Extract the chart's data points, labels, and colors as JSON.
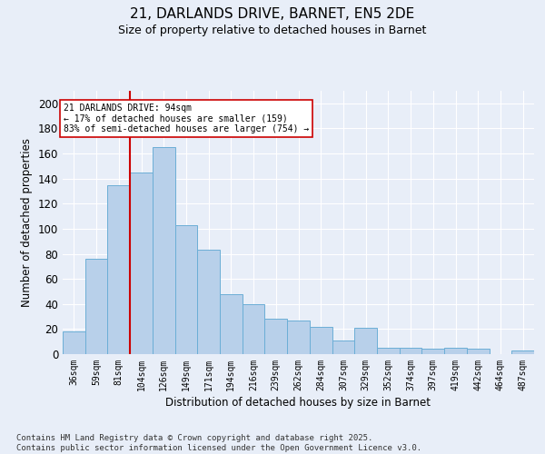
{
  "title1": "21, DARLANDS DRIVE, BARNET, EN5 2DE",
  "title2": "Size of property relative to detached houses in Barnet",
  "xlabel": "Distribution of detached houses by size in Barnet",
  "ylabel": "Number of detached properties",
  "categories": [
    "36sqm",
    "59sqm",
    "81sqm",
    "104sqm",
    "126sqm",
    "149sqm",
    "171sqm",
    "194sqm",
    "216sqm",
    "239sqm",
    "262sqm",
    "284sqm",
    "307sqm",
    "329sqm",
    "352sqm",
    "374sqm",
    "397sqm",
    "419sqm",
    "442sqm",
    "464sqm",
    "487sqm"
  ],
  "values": [
    18,
    76,
    135,
    145,
    165,
    103,
    83,
    48,
    40,
    28,
    27,
    22,
    11,
    21,
    5,
    5,
    4,
    5,
    4,
    0,
    3
  ],
  "bar_color": "#b8d0ea",
  "bar_edge_color": "#6baed6",
  "vline_x": 2.5,
  "vline_color": "#cc0000",
  "annotation_text": "21 DARLANDS DRIVE: 94sqm\n← 17% of detached houses are smaller (159)\n83% of semi-detached houses are larger (754) →",
  "ylim": [
    0,
    210
  ],
  "yticks": [
    0,
    20,
    40,
    60,
    80,
    100,
    120,
    140,
    160,
    180,
    200
  ],
  "bg_color": "#e8eef8",
  "grid_color": "#ffffff",
  "footer": "Contains HM Land Registry data © Crown copyright and database right 2025.\nContains public sector information licensed under the Open Government Licence v3.0.",
  "figsize": [
    6.0,
    5.0
  ],
  "dpi": 100
}
